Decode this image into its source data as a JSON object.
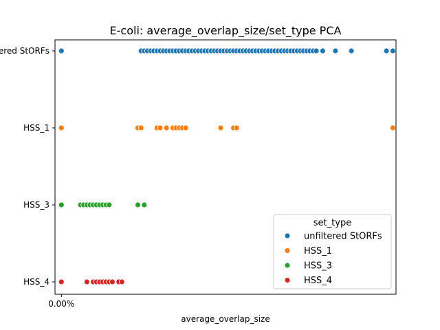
{
  "chart_data": {
    "type": "scatter",
    "title": "E-coli: average_overlap_size/set_type PCA",
    "xlabel": "average_overlap_size",
    "ylabel": "",
    "x_tick_labels": [
      "0.00%"
    ],
    "x_ticks": [
      0.0
    ],
    "xlim": [
      -0.02,
      1.05
    ],
    "categories": [
      "unfiltered StORFs",
      "HSS_1",
      "HSS_3",
      "HSS_4"
    ],
    "legend": {
      "title": "set_type",
      "placement": "lower-right",
      "entries": [
        "unfiltered StORFs",
        "HSS_1",
        "HSS_3",
        "HSS_4"
      ]
    },
    "grid": false,
    "series": [
      {
        "name": "unfiltered StORFs",
        "color": "#1f77b4",
        "category": "unfiltered StORFs",
        "x": [
          0.0,
          0.25,
          0.26,
          0.27,
          0.28,
          0.29,
          0.3,
          0.31,
          0.32,
          0.33,
          0.34,
          0.35,
          0.36,
          0.37,
          0.38,
          0.39,
          0.4,
          0.41,
          0.42,
          0.43,
          0.44,
          0.45,
          0.46,
          0.47,
          0.48,
          0.49,
          0.5,
          0.51,
          0.52,
          0.53,
          0.54,
          0.55,
          0.56,
          0.57,
          0.58,
          0.59,
          0.6,
          0.61,
          0.62,
          0.63,
          0.64,
          0.65,
          0.66,
          0.67,
          0.68,
          0.69,
          0.7,
          0.71,
          0.72,
          0.73,
          0.74,
          0.75,
          0.76,
          0.77,
          0.78,
          0.79,
          0.8,
          0.82,
          0.86,
          0.91,
          1.02,
          1.04
        ]
      },
      {
        "name": "HSS_1",
        "color": "#ff7f0e",
        "category": "HSS_1",
        "x": [
          0.0,
          0.24,
          0.25,
          0.3,
          0.31,
          0.33,
          0.35,
          0.36,
          0.37,
          0.38,
          0.39,
          0.5,
          0.54,
          0.55,
          1.04
        ]
      },
      {
        "name": "HSS_3",
        "color": "#2ca02c",
        "category": "HSS_3",
        "x": [
          0.0,
          0.06,
          0.07,
          0.08,
          0.09,
          0.1,
          0.11,
          0.12,
          0.13,
          0.14,
          0.15,
          0.24,
          0.26
        ]
      },
      {
        "name": "HSS_4",
        "color": "#d62728",
        "category": "HSS_4",
        "x": [
          0.0,
          0.08,
          0.1,
          0.11,
          0.12,
          0.13,
          0.14,
          0.15,
          0.16,
          0.18,
          0.19
        ]
      }
    ]
  }
}
